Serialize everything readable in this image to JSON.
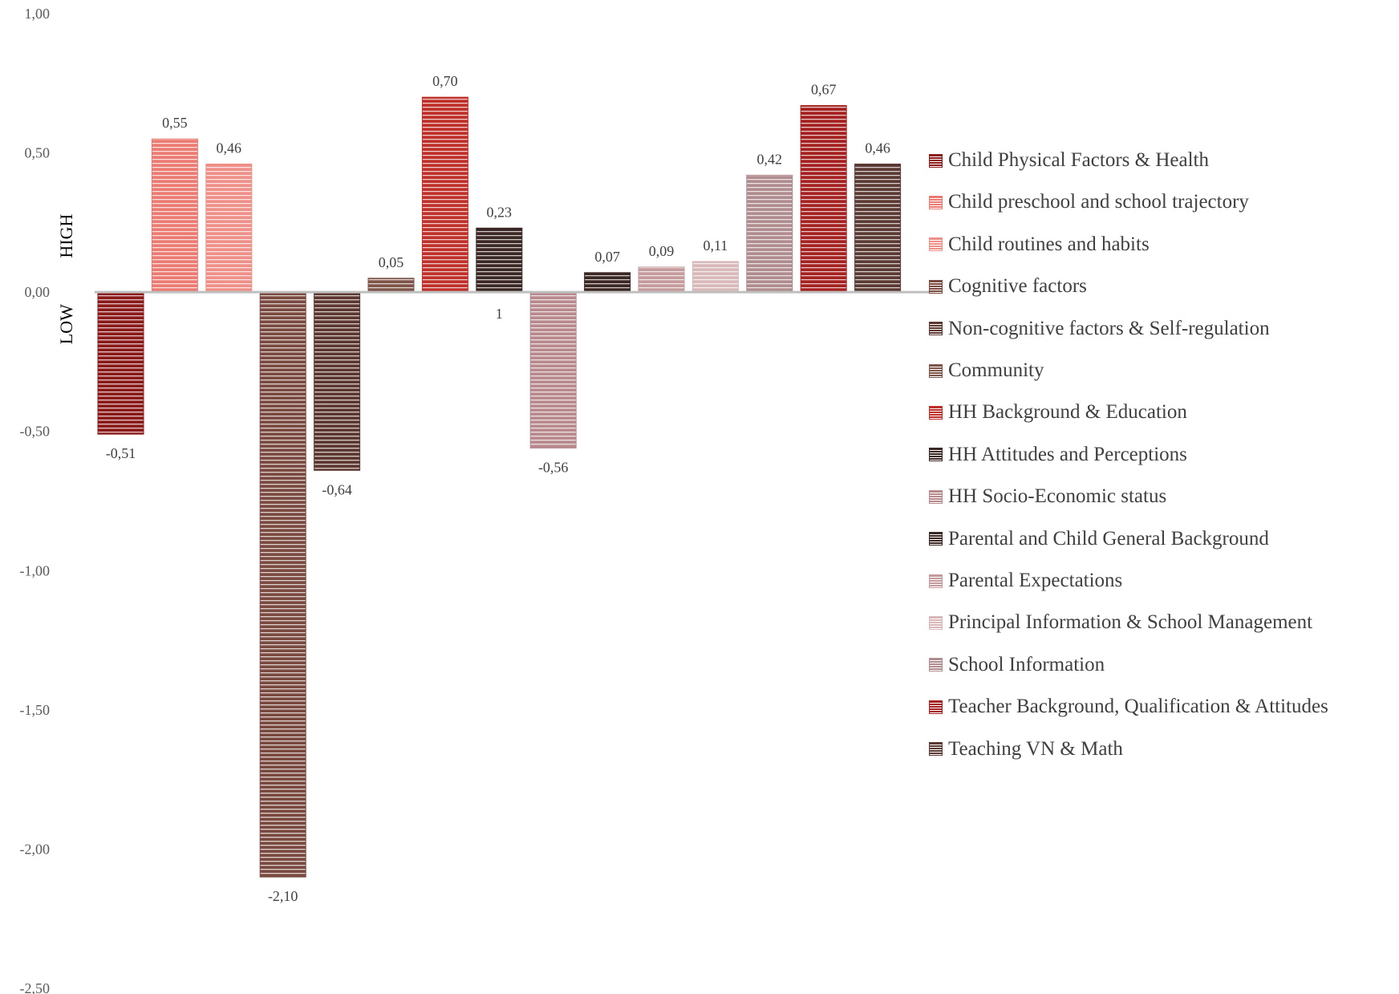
{
  "chart_data": {
    "type": "bar",
    "ylim": [
      -2.5,
      1.0
    ],
    "y_ticks": [
      1.0,
      0.5,
      0.0,
      -0.5,
      -1.0,
      -1.5,
      -2.0,
      -2.5
    ],
    "y_tick_labels": [
      "1,00",
      "0,50",
      "0,00",
      "-0,50",
      "-1,00",
      "-1,50",
      "-2,00",
      "-2,50"
    ],
    "side_labels": {
      "high": "HIGH",
      "low": "LOW"
    },
    "legend_position": "right",
    "grid": false,
    "series": [
      {
        "name": "Child Physical Factors & Health",
        "value": -0.51,
        "label": "-0,51",
        "color": "#8B1A1A",
        "stripe": "#ffffff"
      },
      {
        "name": "Child preschool and school trajectory",
        "value": 0.55,
        "label": "0,55",
        "color": "#EB7A72",
        "stripe": "#ffffff"
      },
      {
        "name": "Child routines and habits",
        "value": 0.46,
        "label": "0,46",
        "color": "#EE9088",
        "stripe": "#ffffff"
      },
      {
        "name": "Cognitive factors",
        "value": -2.1,
        "label": "-2,10",
        "color": "#7A4A40",
        "stripe": "#ffffff"
      },
      {
        "name": "Non-cognitive factors & Self-regulation",
        "value": -0.64,
        "label": "-0,64",
        "color": "#5C3830",
        "stripe": "#ffffff"
      },
      {
        "name": "Community",
        "value": 0.05,
        "label": "0,05",
        "color": "#7E5448",
        "stripe": "#ffffff"
      },
      {
        "name": "HH Background & Education",
        "value": 0.7,
        "label": "0,70",
        "color": "#C0302A",
        "stripe": "#ffffff"
      },
      {
        "name": "HH Attitudes and Perceptions",
        "value": 0.23,
        "label": "0,23",
        "color": "#3A2622",
        "stripe": "#ffffff"
      },
      {
        "name": "HH Socio-Economic status",
        "value": -0.56,
        "label": "-0,56",
        "color": "#B88A8E",
        "stripe": "#ffffff"
      },
      {
        "name": "Parental and Child General Background",
        "value": 0.07,
        "label": "0,07",
        "color": "#3A2622",
        "stripe": "#ffffff"
      },
      {
        "name": "Parental Expectations",
        "value": 0.09,
        "label": "0,09",
        "color": "#C49A9C",
        "stripe": "#ffffff"
      },
      {
        "name": "Principal Information & School Management",
        "value": 0.11,
        "label": "0,11",
        "color": "#D8B8B8",
        "stripe": "#ffffff"
      },
      {
        "name": "School Information",
        "value": 0.42,
        "label": "0,42",
        "color": "#B08C8E",
        "stripe": "#ffffff"
      },
      {
        "name": "Teacher Background, Qualification & Attitudes",
        "value": 0.67,
        "label": "0,67",
        "color": "#A52020",
        "stripe": "#ffffff"
      },
      {
        "name": "Teaching VN & Math",
        "value": 0.46,
        "label": "0,46",
        "color": "#5A3A32",
        "stripe": "#ffffff"
      }
    ],
    "annotations": [
      {
        "text": "1",
        "near_series": "HH Attitudes and Perceptions"
      }
    ]
  }
}
